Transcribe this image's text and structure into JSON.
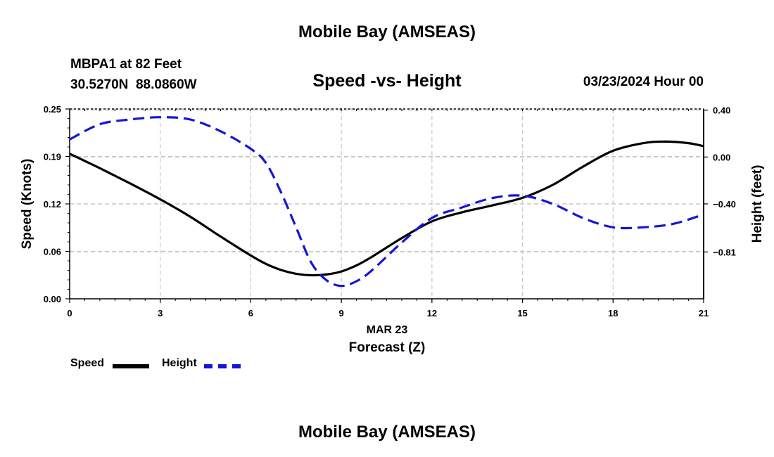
{
  "header": {
    "title": "Mobile Bay (AMSEAS)",
    "station": "MBPA1 at 82 Feet",
    "coords": "30.5270N  88.0860W",
    "subtitle": "Speed -vs- Height",
    "datestamp": "03/23/2024 Hour 00"
  },
  "footer": {
    "title": "Mobile Bay (AMSEAS)"
  },
  "legend": {
    "items": [
      {
        "label": "Speed",
        "color": "#000000",
        "style": "solid"
      },
      {
        "label": "Height",
        "color": "#1515d6",
        "style": "dashed"
      }
    ]
  },
  "chart_data": {
    "type": "line",
    "title": "Speed -vs- Height",
    "xlabel": "Forecast (Z)",
    "xlabel_date": "MAR 23",
    "ylabel": "Speed (Knots)",
    "y2label": "Height (feet)",
    "xlim": [
      0,
      21
    ],
    "ylim": [
      0,
      0.25
    ],
    "y2lim": [
      -1.21,
      0.41
    ],
    "x_ticks": [
      "0",
      "3",
      "6",
      "9",
      "12",
      "15",
      "18",
      "21"
    ],
    "y_ticks": [
      "0.00",
      "0.06",
      "0.12",
      "0.19",
      "0.25"
    ],
    "y_tick_values": [
      0,
      0.0625,
      0.125,
      0.1875,
      0.25
    ],
    "y2_ticks": [
      "0.40",
      "0.00",
      "−0.40",
      "−0.81"
    ],
    "y2_tick_values": [
      0.4,
      0.0,
      -0.4,
      -0.81
    ],
    "grid": true,
    "series": [
      {
        "name": "Speed",
        "axis": "left",
        "color": "#000000",
        "x": [
          0,
          1,
          2,
          3,
          4,
          5,
          6,
          6.5,
          7,
          7.5,
          8,
          8.5,
          9,
          9.5,
          10,
          11,
          12,
          13,
          14,
          15,
          16,
          17,
          18,
          19,
          19.7,
          20.5,
          21
        ],
        "values": [
          0.191,
          0.172,
          0.152,
          0.131,
          0.108,
          0.082,
          0.057,
          0.046,
          0.038,
          0.033,
          0.031,
          0.032,
          0.036,
          0.044,
          0.055,
          0.08,
          0.102,
          0.114,
          0.123,
          0.133,
          0.15,
          0.174,
          0.195,
          0.205,
          0.207,
          0.205,
          0.201
        ]
      },
      {
        "name": "Height",
        "axis": "right",
        "color": "#1515d6",
        "x": [
          0,
          1,
          2,
          3,
          4,
          5,
          6,
          6.5,
          7,
          7.5,
          8,
          8.5,
          9,
          9.5,
          10,
          11,
          12,
          13,
          14,
          15,
          16,
          17,
          18,
          19,
          20,
          21
        ],
        "values": [
          0.15,
          0.28,
          0.32,
          0.34,
          0.32,
          0.22,
          0.07,
          -0.05,
          -0.3,
          -0.6,
          -0.9,
          -1.05,
          -1.1,
          -1.06,
          -0.97,
          -0.73,
          -0.52,
          -0.43,
          -0.35,
          -0.33,
          -0.4,
          -0.52,
          -0.6,
          -0.6,
          -0.57,
          -0.49
        ]
      }
    ]
  }
}
